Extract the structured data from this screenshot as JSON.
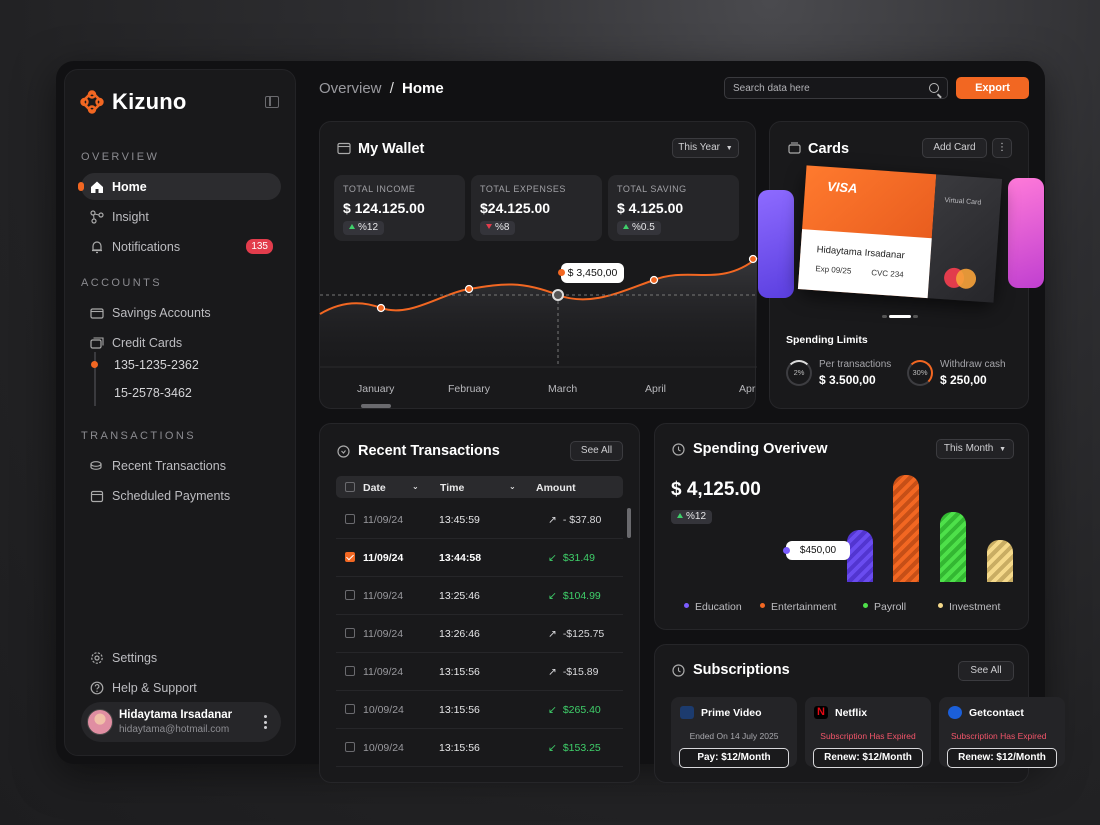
{
  "brand": {
    "name": "Kizuno",
    "accent": "#f26722"
  },
  "sidebar": {
    "overview_label": "OVERVIEW",
    "accounts_label": "ACCOUNTS",
    "transactions_label": "TRANSACTIONS",
    "overview": [
      {
        "label": "Home",
        "icon": "home-icon",
        "active": true
      },
      {
        "label": "Insight",
        "icon": "insight-icon"
      },
      {
        "label": "Notifications",
        "icon": "bell-icon",
        "badge": "135"
      }
    ],
    "accounts": [
      {
        "label": "Savings Accounts",
        "icon": "wallet-icon"
      },
      {
        "label": "Credit Cards",
        "icon": "cards-icon"
      }
    ],
    "card_numbers": [
      "135-1235-2362",
      "15-2578-3462"
    ],
    "transactions": [
      {
        "label": "Recent Transactions",
        "icon": "coins-icon"
      },
      {
        "label": "Scheduled Payments",
        "icon": "calendar-icon"
      }
    ],
    "bottom": [
      {
        "label": "Settings",
        "icon": "gear-icon"
      },
      {
        "label": "Help & Support",
        "icon": "help-icon"
      }
    ],
    "user": {
      "name": "Hidaytama Irsadanar",
      "email": "hidaytama@hotmail.com"
    }
  },
  "header": {
    "breadcrumb_parent": "Overview",
    "breadcrumb_sep": "/",
    "breadcrumb_current": "Home",
    "search_placeholder": "Search data here",
    "export_label": "Export"
  },
  "wallet": {
    "title": "My Wallet",
    "period": "This Year",
    "stats": [
      {
        "label": "TOTAL INCOME",
        "value": "$ 124.125.00",
        "change": "%12",
        "trend": "up"
      },
      {
        "label": "TOTAL EXPENSES",
        "value": "$24.125.00",
        "change": "%8",
        "trend": "down"
      },
      {
        "label": "TOTAL SAVING",
        "value": "$ 4.125.00",
        "change": "%0.5",
        "trend": "up"
      }
    ],
    "tooltip": "$ 3,450,00",
    "months": [
      "January",
      "February",
      "March",
      "April",
      "Apr"
    ]
  },
  "cards": {
    "title": "Cards",
    "add_label": "Add Card",
    "card": {
      "brand": "VISA",
      "type": "Virtual Card",
      "holder": "Hidaytama Irsadanar",
      "exp": "Exp  09/25",
      "cvc": "CVC  234"
    },
    "limits_title": "Spending Limits",
    "limits": [
      {
        "pct": "2%",
        "label": "Per transactions",
        "value": "$ 3.500,00"
      },
      {
        "pct": "30%",
        "label": "Withdraw cash",
        "value": "$ 250,00"
      }
    ]
  },
  "transactions": {
    "title": "Recent Transactions",
    "see_all": "See All",
    "columns": [
      "Date",
      "Time",
      "Amount"
    ],
    "rows": [
      {
        "date": "11/09/24",
        "time": "13:45:59",
        "amount": "- $37.80",
        "dir": "out",
        "checked": false
      },
      {
        "date": "11/09/24",
        "time": "13:44:58",
        "amount": "$31.49",
        "dir": "in",
        "checked": true
      },
      {
        "date": "11/09/24",
        "time": "13:25:46",
        "amount": "$104.99",
        "dir": "in",
        "checked": false
      },
      {
        "date": "11/09/24",
        "time": "13:26:46",
        "amount": "-$125.75",
        "dir": "out",
        "checked": false
      },
      {
        "date": "11/09/24",
        "time": "13:15:56",
        "amount": "-$15.89",
        "dir": "out",
        "checked": false
      },
      {
        "date": "10/09/24",
        "time": "13:15:56",
        "amount": "$265.40",
        "dir": "in",
        "checked": false
      },
      {
        "date": "10/09/24",
        "time": "13:15:56",
        "amount": "$153.25",
        "dir": "in",
        "checked": false
      }
    ]
  },
  "spending": {
    "title": "Spending Overivew",
    "period": "This Month",
    "total": "$ 4,125.00",
    "change": "%12",
    "tooltip": "$450,00",
    "categories": [
      {
        "label": "Education",
        "color": "#7b5cff"
      },
      {
        "label": "Entertainment",
        "color": "#f26722"
      },
      {
        "label": "Payroll",
        "color": "#4ee04a"
      },
      {
        "label": "Investment",
        "color": "#f5d98a"
      }
    ]
  },
  "subscriptions": {
    "title": "Subscriptions",
    "see_all": "See All",
    "items": [
      {
        "name": "Prime Video",
        "status": "Ended On 14 July 2025",
        "button": "Pay: $12/Month",
        "expired": false
      },
      {
        "name": "Netflix",
        "status": "Subscription Has Expired",
        "button": "Renew: $12/Month",
        "expired": true
      },
      {
        "name": "Getcontact",
        "status": "Subscription Has Expired",
        "button": "Renew: $12/Month",
        "expired": true
      }
    ]
  }
}
